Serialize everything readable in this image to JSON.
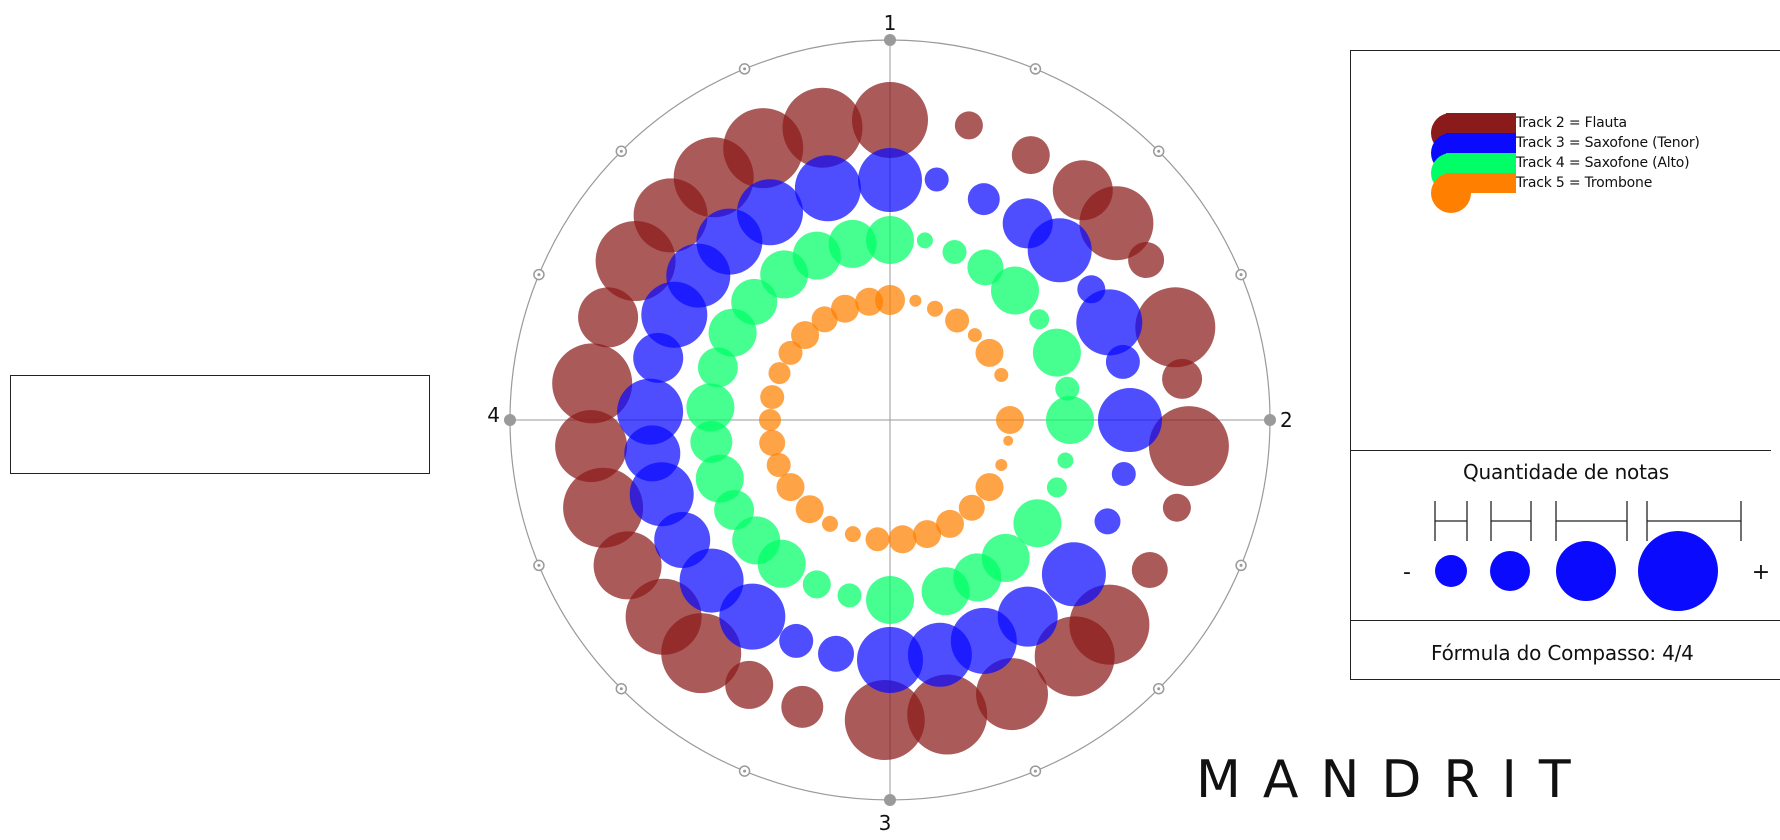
{
  "chart_data": {
    "type": "scatter",
    "subtype": "radial-bubble",
    "title": "",
    "axis_labels": [
      "1",
      "2",
      "3",
      "4"
    ],
    "legend": {
      "placement": "top-right",
      "entries": [
        {
          "label": "Track 2 = Flauta",
          "color": "#8b1a1a"
        },
        {
          "label": "Track 3 = Saxofone (Tenor)",
          "color": "#0a0aff"
        },
        {
          "label": "Track 4 = Saxofone (Alto)",
          "color": "#00ff66"
        },
        {
          "label": "Track 5 = Trombone",
          "color": "#ff8000"
        }
      ]
    },
    "series": [
      {
        "name": "Track 2 = Flauta",
        "color": "#8b1a1a",
        "points": [
          {
            "angle": 0,
            "ring": 300,
            "size": 38
          },
          {
            "angle": 15,
            "ring": 305,
            "size": 14
          },
          {
            "angle": 28,
            "ring": 300,
            "size": 19
          },
          {
            "angle": 40,
            "ring": 300,
            "size": 30
          },
          {
            "angle": 49,
            "ring": 300,
            "size": 37
          },
          {
            "angle": 58,
            "ring": 302,
            "size": 18
          },
          {
            "angle": 72,
            "ring": 300,
            "size": 40
          },
          {
            "angle": 82,
            "ring": 295,
            "size": 20
          },
          {
            "angle": 95,
            "ring": 300,
            "size": 40
          },
          {
            "angle": 107,
            "ring": 300,
            "size": 14
          },
          {
            "angle": 120,
            "ring": 300,
            "size": 18
          },
          {
            "angle": 133,
            "ring": 300,
            "size": 40
          },
          {
            "angle": 142,
            "ring": 300,
            "size": 40
          },
          {
            "angle": 156,
            "ring": 300,
            "size": 36
          },
          {
            "angle": 169,
            "ring": 300,
            "size": 40
          },
          {
            "angle": 181,
            "ring": 300,
            "size": 40
          },
          {
            "angle": 197,
            "ring": 300,
            "size": 21
          },
          {
            "angle": 208,
            "ring": 300,
            "size": 24
          },
          {
            "angle": 219,
            "ring": 300,
            "size": 40
          },
          {
            "angle": 229,
            "ring": 300,
            "size": 38
          },
          {
            "angle": 241,
            "ring": 300,
            "size": 34
          },
          {
            "angle": 253,
            "ring": 300,
            "size": 40
          },
          {
            "angle": 265,
            "ring": 300,
            "size": 36
          },
          {
            "angle": 277,
            "ring": 300,
            "size": 40
          },
          {
            "angle": 290,
            "ring": 300,
            "size": 30
          },
          {
            "angle": 302,
            "ring": 300,
            "size": 40
          },
          {
            "angle": 313,
            "ring": 300,
            "size": 37
          },
          {
            "angle": 324,
            "ring": 300,
            "size": 40
          },
          {
            "angle": 335,
            "ring": 300,
            "size": 40
          },
          {
            "angle": 347,
            "ring": 300,
            "size": 40
          }
        ]
      },
      {
        "name": "Track 3 = Saxofone (Tenor)",
        "color": "#0a0aff",
        "points": [
          {
            "angle": 0,
            "ring": 240,
            "size": 32
          },
          {
            "angle": 11,
            "ring": 245,
            "size": 12
          },
          {
            "angle": 23,
            "ring": 240,
            "size": 16
          },
          {
            "angle": 35,
            "ring": 240,
            "size": 25
          },
          {
            "angle": 45,
            "ring": 240,
            "size": 32
          },
          {
            "angle": 57,
            "ring": 240,
            "size": 14
          },
          {
            "angle": 66,
            "ring": 240,
            "size": 33
          },
          {
            "angle": 76,
            "ring": 240,
            "size": 17
          },
          {
            "angle": 90,
            "ring": 240,
            "size": 32
          },
          {
            "angle": 103,
            "ring": 240,
            "size": 12
          },
          {
            "angle": 115,
            "ring": 240,
            "size": 13
          },
          {
            "angle": 130,
            "ring": 240,
            "size": 32
          },
          {
            "angle": 145,
            "ring": 240,
            "size": 30
          },
          {
            "angle": 157,
            "ring": 240,
            "size": 33
          },
          {
            "angle": 168,
            "ring": 240,
            "size": 32
          },
          {
            "angle": 180,
            "ring": 240,
            "size": 33
          },
          {
            "angle": 193,
            "ring": 240,
            "size": 18
          },
          {
            "angle": 203,
            "ring": 240,
            "size": 17
          },
          {
            "angle": 215,
            "ring": 240,
            "size": 33
          },
          {
            "angle": 228,
            "ring": 240,
            "size": 32
          },
          {
            "angle": 240,
            "ring": 240,
            "size": 28
          },
          {
            "angle": 252,
            "ring": 240,
            "size": 32
          },
          {
            "angle": 262,
            "ring": 240,
            "size": 28
          },
          {
            "angle": 272,
            "ring": 240,
            "size": 33
          },
          {
            "angle": 285,
            "ring": 240,
            "size": 25
          },
          {
            "angle": 296,
            "ring": 240,
            "size": 33
          },
          {
            "angle": 307,
            "ring": 240,
            "size": 32
          },
          {
            "angle": 318,
            "ring": 240,
            "size": 33
          },
          {
            "angle": 330,
            "ring": 240,
            "size": 33
          },
          {
            "angle": 345,
            "ring": 240,
            "size": 33
          }
        ]
      },
      {
        "name": "Track 4 = Saxofone (Alto)",
        "color": "#00ff66",
        "points": [
          {
            "angle": 0,
            "ring": 180,
            "size": 24
          },
          {
            "angle": 11,
            "ring": 183,
            "size": 8
          },
          {
            "angle": 21,
            "ring": 180,
            "size": 12
          },
          {
            "angle": 32,
            "ring": 180,
            "size": 18
          },
          {
            "angle": 44,
            "ring": 180,
            "size": 24
          },
          {
            "angle": 56,
            "ring": 180,
            "size": 10
          },
          {
            "angle": 68,
            "ring": 180,
            "size": 24
          },
          {
            "angle": 80,
            "ring": 180,
            "size": 12
          },
          {
            "angle": 90,
            "ring": 180,
            "size": 24
          },
          {
            "angle": 103,
            "ring": 180,
            "size": 8
          },
          {
            "angle": 112,
            "ring": 180,
            "size": 10
          },
          {
            "angle": 125,
            "ring": 180,
            "size": 24
          },
          {
            "angle": 140,
            "ring": 180,
            "size": 24
          },
          {
            "angle": 151,
            "ring": 180,
            "size": 24
          },
          {
            "angle": 162,
            "ring": 180,
            "size": 24
          },
          {
            "angle": 180,
            "ring": 180,
            "size": 24
          },
          {
            "angle": 193,
            "ring": 180,
            "size": 12
          },
          {
            "angle": 204,
            "ring": 180,
            "size": 14
          },
          {
            "angle": 217,
            "ring": 180,
            "size": 24
          },
          {
            "angle": 228,
            "ring": 180,
            "size": 24
          },
          {
            "angle": 240,
            "ring": 180,
            "size": 20
          },
          {
            "angle": 251,
            "ring": 180,
            "size": 24
          },
          {
            "angle": 263,
            "ring": 180,
            "size": 21
          },
          {
            "angle": 274,
            "ring": 180,
            "size": 24
          },
          {
            "angle": 287,
            "ring": 180,
            "size": 20
          },
          {
            "angle": 299,
            "ring": 180,
            "size": 24
          },
          {
            "angle": 311,
            "ring": 180,
            "size": 23
          },
          {
            "angle": 324,
            "ring": 180,
            "size": 24
          },
          {
            "angle": 336,
            "ring": 180,
            "size": 24
          },
          {
            "angle": 348,
            "ring": 180,
            "size": 24
          }
        ]
      },
      {
        "name": "Track 5 = Trombone",
        "color": "#ff8000",
        "points": [
          {
            "angle": 0,
            "ring": 120,
            "size": 15
          },
          {
            "angle": 12,
            "ring": 122,
            "size": 6
          },
          {
            "angle": 22,
            "ring": 120,
            "size": 8
          },
          {
            "angle": 34,
            "ring": 120,
            "size": 12
          },
          {
            "angle": 45,
            "ring": 120,
            "size": 7
          },
          {
            "angle": 56,
            "ring": 120,
            "size": 14
          },
          {
            "angle": 68,
            "ring": 120,
            "size": 7
          },
          {
            "angle": 90,
            "ring": 120,
            "size": 14
          },
          {
            "angle": 100,
            "ring": 120,
            "size": 5
          },
          {
            "angle": 112,
            "ring": 120,
            "size": 6
          },
          {
            "angle": 124,
            "ring": 120,
            "size": 14
          },
          {
            "angle": 137,
            "ring": 120,
            "size": 13
          },
          {
            "angle": 150,
            "ring": 120,
            "size": 14
          },
          {
            "angle": 162,
            "ring": 120,
            "size": 14
          },
          {
            "angle": 174,
            "ring": 120,
            "size": 14
          },
          {
            "angle": 186,
            "ring": 120,
            "size": 12
          },
          {
            "angle": 198,
            "ring": 120,
            "size": 8
          },
          {
            "angle": 210,
            "ring": 120,
            "size": 8
          },
          {
            "angle": 222,
            "ring": 120,
            "size": 14
          },
          {
            "angle": 236,
            "ring": 120,
            "size": 14
          },
          {
            "angle": 248,
            "ring": 120,
            "size": 12
          },
          {
            "angle": 259,
            "ring": 120,
            "size": 13
          },
          {
            "angle": 270,
            "ring": 120,
            "size": 11
          },
          {
            "angle": 281,
            "ring": 120,
            "size": 12
          },
          {
            "angle": 293,
            "ring": 120,
            "size": 11
          },
          {
            "angle": 304,
            "ring": 120,
            "size": 12
          },
          {
            "angle": 315,
            "ring": 120,
            "size": 14
          },
          {
            "angle": 327,
            "ring": 120,
            "size": 13
          },
          {
            "angle": 338,
            "ring": 120,
            "size": 14
          },
          {
            "angle": 350,
            "ring": 120,
            "size": 14
          }
        ]
      }
    ]
  },
  "size_legend": {
    "title": "Quantidade de notas",
    "minus_label": "-",
    "plus_label": "+",
    "sample_color": "#0a0aff",
    "samples": [
      1,
      2,
      3,
      4
    ]
  },
  "meter": {
    "text": "Fórmula do Compasso: 4/4"
  },
  "brand": {
    "name": "MANDRIT"
  },
  "colors": {
    "axis": "#9a9a9a",
    "panel_border": "#222222"
  }
}
